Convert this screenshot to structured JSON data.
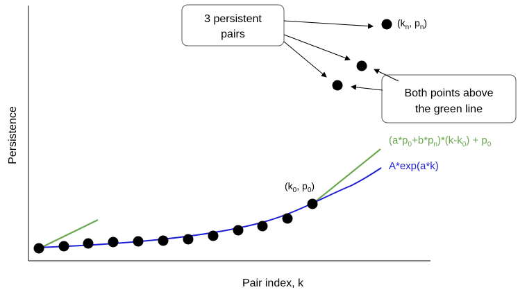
{
  "axes": {
    "ylabel": "Persistence",
    "xlabel": "Pair index, k"
  },
  "callouts": {
    "persistent_pairs": {
      "line1": "3 persistent",
      "line2": "pairs"
    },
    "above_green": {
      "line1": "Both points above",
      "line2": "the green line"
    }
  },
  "point_labels": {
    "kn_pn": {
      "open": "(k",
      "sub1": "n",
      "mid": ", p",
      "sub2": "n",
      "close": ")"
    },
    "k0_p0": {
      "open": "(k",
      "sub1": "0",
      "mid": ", p",
      "sub2": "0",
      "close": ")"
    }
  },
  "legend": {
    "green_formula": {
      "parts": [
        {
          "t": "(a*p"
        },
        {
          "t": "0",
          "sub": true
        },
        {
          "t": "+b*p"
        },
        {
          "t": "n",
          "sub": true
        },
        {
          "t": ")*(k-k"
        },
        {
          "t": "0",
          "sub": true
        },
        {
          "t": ") + p"
        },
        {
          "t": "0",
          "sub": true
        }
      ]
    },
    "blue_formula": "A*exp(a*k)"
  },
  "colors": {
    "axis": "#000000",
    "points": "#000000",
    "blue_curve": "#1f1fd6",
    "green_line": "#6aa84f",
    "green_text": "#6aa84f",
    "blue_text": "#1f1fd6",
    "box_border": "#555555"
  },
  "series": {
    "main_points_count": 12,
    "outlier_points_count": 3
  }
}
